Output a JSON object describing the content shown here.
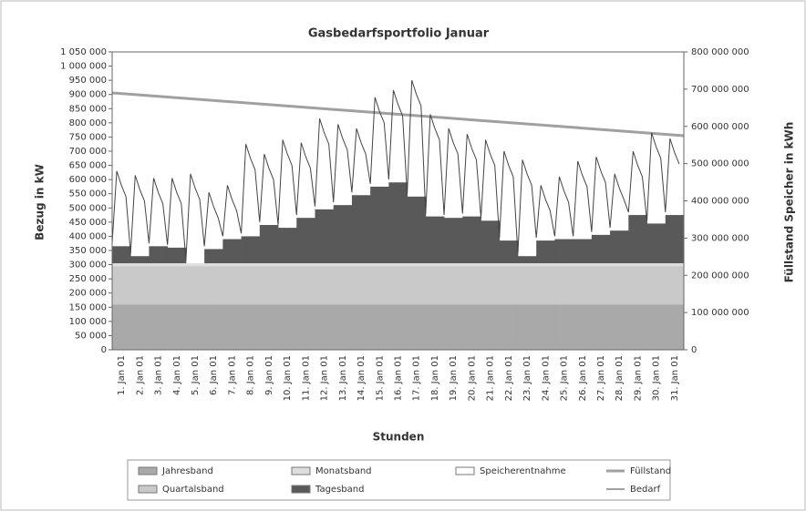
{
  "chart_data": {
    "type": "area",
    "title": "Gasbedarfsportfolio Januar",
    "y_label": "Bezug in kW",
    "y2_label": "Füllstand Speicher in kWh",
    "x_label": "Stunden",
    "categories": [
      "1. Jan 01",
      "2. Jan 01",
      "3. Jan 01",
      "4. Jan 01",
      "5. Jan 01",
      "6. Jan 01",
      "7. Jan 01",
      "8. Jan 01",
      "9. Jan 01",
      "10. Jan 01",
      "11. Jan 01",
      "12. Jan 01",
      "13. Jan 01",
      "14. Jan 01",
      "15. Jan 01",
      "16. Jan 01",
      "17. Jan 01",
      "18. Jan 01",
      "19. Jan 01",
      "20. Jan 01",
      "21. Jan 01",
      "22. Jan 01",
      "23. Jan 01",
      "24. Jan 01",
      "25. Jan 01",
      "26. Jan 01",
      "27. Jan 01",
      "28. Jan 01",
      "29. Jan 01",
      "30. Jan 01",
      "31. Jan 01"
    ],
    "xlim": [
      0,
      744
    ],
    "ylim": [
      0,
      1050000
    ],
    "yticks": [
      0,
      {
        "value": 50000,
        "label": "50 000"
      },
      {
        "value": 100000,
        "label": "100 000"
      },
      {
        "value": 150000,
        "label": "150 000"
      },
      {
        "value": 200000,
        "label": "200 000"
      },
      {
        "value": 250000,
        "label": "250 000"
      },
      {
        "value": 300000,
        "label": "300 000"
      },
      {
        "value": 350000,
        "label": "350 000"
      },
      {
        "value": 400000,
        "label": "400 000"
      },
      {
        "value": 450000,
        "label": "450 000"
      },
      {
        "value": 500000,
        "label": "500 000"
      },
      {
        "value": 550000,
        "label": "550 000"
      },
      {
        "value": 600000,
        "label": "600 000"
      },
      {
        "value": 650000,
        "label": "650 000"
      },
      {
        "value": 700000,
        "label": "700 000"
      },
      {
        "value": 750000,
        "label": "750 000"
      },
      {
        "value": 800000,
        "label": "800 000"
      },
      {
        "value": 850000,
        "label": "850 000"
      },
      {
        "value": 900000,
        "label": "900 000"
      },
      {
        "value": 950000,
        "label": "950 000"
      },
      {
        "value": 1000000,
        "label": "1 000 000"
      },
      {
        "value": 1050000,
        "label": "1 050 000"
      }
    ],
    "y2lim": [
      0,
      800000000
    ],
    "y2ticks": [
      0,
      {
        "value": 100000000,
        "label": "100 000 000"
      },
      {
        "value": 200000000,
        "label": "200 000 000"
      },
      {
        "value": 300000000,
        "label": "300 000 000"
      },
      {
        "value": 400000000,
        "label": "400 000 000"
      },
      {
        "value": 500000000,
        "label": "500 000 000"
      },
      {
        "value": 600000000,
        "label": "600 000 000"
      },
      {
        "value": 700000000,
        "label": "700 000 000"
      },
      {
        "value": 800000000,
        "label": "800 000 000"
      }
    ],
    "series": [
      {
        "name": "Jahresband",
        "color": "#a9a9a9",
        "values": [
          160000,
          160000,
          160000,
          160000,
          160000,
          160000,
          160000,
          160000,
          160000,
          160000,
          160000,
          160000,
          160000,
          160000,
          160000,
          160000,
          160000,
          160000,
          160000,
          160000,
          160000,
          160000,
          160000,
          160000,
          160000,
          160000,
          160000,
          160000,
          160000,
          160000,
          160000
        ]
      },
      {
        "name": "Quartalsband",
        "color": "#c9c9c9",
        "values": [
          135000,
          135000,
          135000,
          135000,
          135000,
          135000,
          135000,
          135000,
          135000,
          135000,
          135000,
          135000,
          135000,
          135000,
          135000,
          135000,
          135000,
          135000,
          135000,
          135000,
          135000,
          135000,
          135000,
          135000,
          135000,
          135000,
          135000,
          135000,
          135000,
          135000,
          135000
        ]
      },
      {
        "name": "Monatsband",
        "color": "#dedede",
        "values": [
          10000,
          10000,
          10000,
          10000,
          10000,
          10000,
          10000,
          10000,
          10000,
          10000,
          10000,
          10000,
          10000,
          10000,
          10000,
          10000,
          10000,
          10000,
          10000,
          10000,
          10000,
          10000,
          10000,
          10000,
          10000,
          10000,
          10000,
          10000,
          10000,
          10000,
          10000
        ]
      },
      {
        "name": "Tagesband",
        "color": "#595959",
        "values": [
          60000,
          25000,
          60000,
          55000,
          0,
          50000,
          85000,
          95000,
          135000,
          125000,
          160000,
          190000,
          205000,
          240000,
          270000,
          285000,
          235000,
          165000,
          160000,
          165000,
          150000,
          80000,
          25000,
          80000,
          85000,
          85000,
          100000,
          115000,
          170000,
          140000,
          170000
        ]
      },
      {
        "name": "Speicherentnahme",
        "color": "#ffffff"
      },
      {
        "name": "Füllstand",
        "color": "#a0a0a0",
        "axis": "y2",
        "x": [
          0,
          744
        ],
        "values": [
          690000000,
          575000000
        ]
      },
      {
        "name": "Bedarf",
        "color": "#444444",
        "x": [
          0,
          6,
          12,
          18,
          24,
          30,
          36,
          42,
          48,
          54,
          60,
          66,
          72,
          78,
          84,
          90,
          96,
          102,
          108,
          114,
          120,
          126,
          132,
          138,
          144,
          150,
          156,
          162,
          168,
          174,
          180,
          186,
          192,
          198,
          204,
          210,
          216,
          222,
          228,
          234,
          240,
          246,
          252,
          258,
          264,
          270,
          276,
          282,
          288,
          294,
          300,
          306,
          312,
          318,
          324,
          330,
          336,
          342,
          348,
          354,
          360,
          366,
          372,
          378,
          384,
          390,
          396,
          402,
          408,
          414,
          420,
          426,
          432,
          438,
          444,
          450,
          456,
          462,
          468,
          474,
          480,
          486,
          492,
          498,
          504,
          510,
          516,
          522,
          528,
          534,
          540,
          546,
          552,
          558,
          564,
          570,
          576,
          582,
          588,
          594,
          600,
          606,
          612,
          618,
          624,
          630,
          636,
          642,
          648,
          654,
          660,
          666,
          672,
          678,
          684,
          690,
          696,
          702,
          708,
          714,
          720,
          726,
          732,
          738
        ],
        "values": [
          375000,
          630000,
          580000,
          540000,
          340000,
          615000,
          565000,
          525000,
          375000,
          605000,
          555000,
          515000,
          370000,
          605000,
          555000,
          515000,
          315000,
          620000,
          570000,
          530000,
          365000,
          555000,
          505000,
          465000,
          400000,
          580000,
          530000,
          490000,
          410000,
          725000,
          675000,
          635000,
          450000,
          690000,
          640000,
          600000,
          440000,
          740000,
          690000,
          650000,
          475000,
          730000,
          680000,
          640000,
          505000,
          815000,
          765000,
          725000,
          520000,
          795000,
          745000,
          705000,
          555000,
          780000,
          730000,
          690000,
          585000,
          890000,
          840000,
          800000,
          600000,
          915000,
          865000,
          825000,
          550000,
          950000,
          900000,
          860000,
          480000,
          830000,
          780000,
          740000,
          475000,
          780000,
          730000,
          690000,
          480000,
          760000,
          710000,
          670000,
          465000,
          740000,
          690000,
          650000,
          395000,
          700000,
          650000,
          610000,
          340000,
          670000,
          620000,
          580000,
          395000,
          580000,
          530000,
          490000,
          400000,
          610000,
          560000,
          520000,
          400000,
          665000,
          615000,
          575000,
          415000,
          680000,
          630000,
          590000,
          430000,
          620000,
          570000,
          530000,
          485000,
          700000,
          650000,
          610000,
          455000,
          765000,
          715000,
          675000,
          485000,
          745000,
          695000,
          655000
        ]
      }
    ]
  }
}
